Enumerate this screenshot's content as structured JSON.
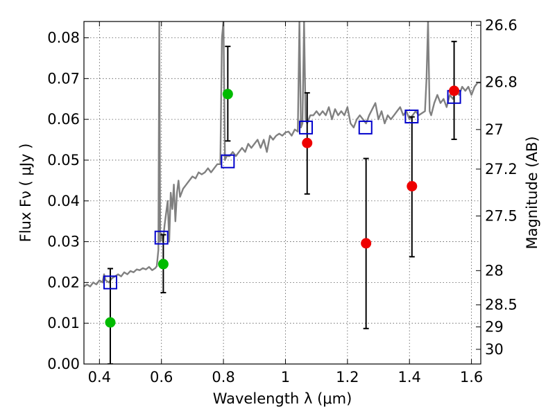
{
  "chart_data": {
    "type": "scatter",
    "xlabel": "Wavelength  λ (μm)",
    "ylabel": "Flux  Fν  ( μJy )",
    "ylabel_right": "Magnitude (AB)",
    "xlim": [
      0.35,
      1.63
    ],
    "ylim": [
      0.0,
      0.084
    ],
    "grid": true,
    "x_ticks": [
      {
        "value": 0.4,
        "label": "0.4"
      },
      {
        "value": 0.6,
        "label": "0.6"
      },
      {
        "value": 0.8,
        "label": "0.8"
      },
      {
        "value": 1.0,
        "label": "1"
      },
      {
        "value": 1.2,
        "label": "1.2"
      },
      {
        "value": 1.4,
        "label": "1.4"
      },
      {
        "value": 1.6,
        "label": "1.6"
      }
    ],
    "y_ticks": [
      {
        "value": 0.0,
        "label": "0.00"
      },
      {
        "value": 0.01,
        "label": "0.01"
      },
      {
        "value": 0.02,
        "label": "0.02"
      },
      {
        "value": 0.03,
        "label": "0.03"
      },
      {
        "value": 0.04,
        "label": "0.04"
      },
      {
        "value": 0.05,
        "label": "0.05"
      },
      {
        "value": 0.06,
        "label": "0.06"
      },
      {
        "value": 0.07,
        "label": "0.07"
      },
      {
        "value": 0.08,
        "label": "0.08"
      }
    ],
    "y_right_ticks": [
      {
        "flux": 0.0831,
        "label": "26.6"
      },
      {
        "flux": 0.0691,
        "label": "26.8"
      },
      {
        "flux": 0.0575,
        "label": "27"
      },
      {
        "flux": 0.0478,
        "label": "27.2"
      },
      {
        "flux": 0.0363,
        "label": "27.5"
      },
      {
        "flux": 0.0229,
        "label": "28"
      },
      {
        "flux": 0.0145,
        "label": "28.5"
      },
      {
        "flux": 0.0091,
        "label": "29"
      },
      {
        "flux": 0.0036,
        "label": "30"
      }
    ],
    "model_spectrum": {
      "color": "#808080",
      "x": [
        0.35,
        0.36,
        0.37,
        0.38,
        0.39,
        0.4,
        0.41,
        0.415,
        0.42,
        0.43,
        0.44,
        0.45,
        0.46,
        0.47,
        0.48,
        0.49,
        0.5,
        0.51,
        0.52,
        0.53,
        0.54,
        0.55,
        0.56,
        0.57,
        0.58,
        0.585,
        0.59,
        0.593,
        0.596,
        0.6,
        0.605,
        0.61,
        0.62,
        0.625,
        0.63,
        0.635,
        0.64,
        0.645,
        0.65,
        0.655,
        0.66,
        0.67,
        0.68,
        0.69,
        0.7,
        0.71,
        0.72,
        0.73,
        0.74,
        0.75,
        0.76,
        0.77,
        0.78,
        0.79,
        0.795,
        0.8,
        0.805,
        0.81,
        0.82,
        0.83,
        0.84,
        0.85,
        0.86,
        0.87,
        0.88,
        0.89,
        0.9,
        0.91,
        0.92,
        0.93,
        0.94,
        0.95,
        0.96,
        0.97,
        0.98,
        0.99,
        1.0,
        1.01,
        1.02,
        1.03,
        1.04,
        1.045,
        1.05,
        1.055,
        1.06,
        1.065,
        1.07,
        1.08,
        1.09,
        1.1,
        1.11,
        1.12,
        1.13,
        1.14,
        1.15,
        1.16,
        1.17,
        1.18,
        1.19,
        1.2,
        1.21,
        1.22,
        1.23,
        1.24,
        1.25,
        1.26,
        1.27,
        1.28,
        1.29,
        1.3,
        1.31,
        1.32,
        1.33,
        1.34,
        1.35,
        1.36,
        1.37,
        1.38,
        1.39,
        1.4,
        1.41,
        1.42,
        1.43,
        1.44,
        1.45,
        1.455,
        1.46,
        1.465,
        1.47,
        1.48,
        1.49,
        1.5,
        1.51,
        1.52,
        1.53,
        1.54,
        1.55,
        1.56,
        1.57,
        1.58,
        1.59,
        1.6,
        1.61,
        1.62,
        1.63
      ],
      "y": [
        0.019,
        0.0195,
        0.019,
        0.02,
        0.0195,
        0.0205,
        0.02,
        0.022,
        0.0205,
        0.02,
        0.021,
        0.0215,
        0.022,
        0.0215,
        0.0225,
        0.022,
        0.0228,
        0.0225,
        0.0232,
        0.023,
        0.0235,
        0.0232,
        0.0238,
        0.023,
        0.0235,
        0.024,
        0.028,
        0.084,
        0.03,
        0.032,
        0.03,
        0.034,
        0.04,
        0.03,
        0.042,
        0.038,
        0.044,
        0.035,
        0.042,
        0.045,
        0.041,
        0.043,
        0.044,
        0.045,
        0.046,
        0.0455,
        0.047,
        0.0465,
        0.047,
        0.048,
        0.047,
        0.048,
        0.049,
        0.049,
        0.08,
        0.084,
        0.05,
        0.051,
        0.051,
        0.052,
        0.051,
        0.052,
        0.053,
        0.052,
        0.054,
        0.053,
        0.054,
        0.055,
        0.053,
        0.055,
        0.052,
        0.056,
        0.055,
        0.056,
        0.0565,
        0.056,
        0.0568,
        0.057,
        0.056,
        0.0575,
        0.057,
        0.084,
        0.058,
        0.059,
        0.084,
        0.06,
        0.059,
        0.061,
        0.061,
        0.062,
        0.061,
        0.062,
        0.061,
        0.063,
        0.06,
        0.0625,
        0.061,
        0.062,
        0.061,
        0.063,
        0.059,
        0.058,
        0.06,
        0.061,
        0.06,
        0.059,
        0.061,
        0.0625,
        0.064,
        0.06,
        0.062,
        0.059,
        0.061,
        0.06,
        0.061,
        0.062,
        0.063,
        0.061,
        0.062,
        0.06,
        0.061,
        0.062,
        0.061,
        0.0615,
        0.062,
        0.07,
        0.084,
        0.062,
        0.061,
        0.064,
        0.066,
        0.064,
        0.065,
        0.063,
        0.066,
        0.065,
        0.067,
        0.066,
        0.068,
        0.067,
        0.068,
        0.066,
        0.068,
        0.069,
        0.069
      ]
    },
    "model_bandpass": {
      "color": "#0000cc",
      "marker": "open-square",
      "x": [
        0.435,
        0.6,
        0.814,
        1.066,
        1.258,
        1.407,
        1.544
      ],
      "y": [
        0.02,
        0.031,
        0.0497,
        0.058,
        0.058,
        0.0607,
        0.0655
      ]
    },
    "observed": {
      "x": [
        0.435,
        0.606,
        0.814,
        1.07,
        1.26,
        1.408,
        1.544
      ],
      "y": [
        0.0102,
        0.0245,
        0.0662,
        0.0542,
        0.0296,
        0.0436,
        0.067
      ],
      "yerr_low": [
        0.0,
        0.0175,
        0.0547,
        0.0417,
        0.0087,
        0.0263,
        0.0551
      ],
      "yerr_high": [
        0.0234,
        0.0317,
        0.0779,
        0.0665,
        0.0504,
        0.0606,
        0.0791
      ],
      "colors": [
        "#00bb00",
        "#00bb00",
        "#00bb00",
        "#ee0000",
        "#ee0000",
        "#ee0000",
        "#ee0000"
      ]
    }
  }
}
